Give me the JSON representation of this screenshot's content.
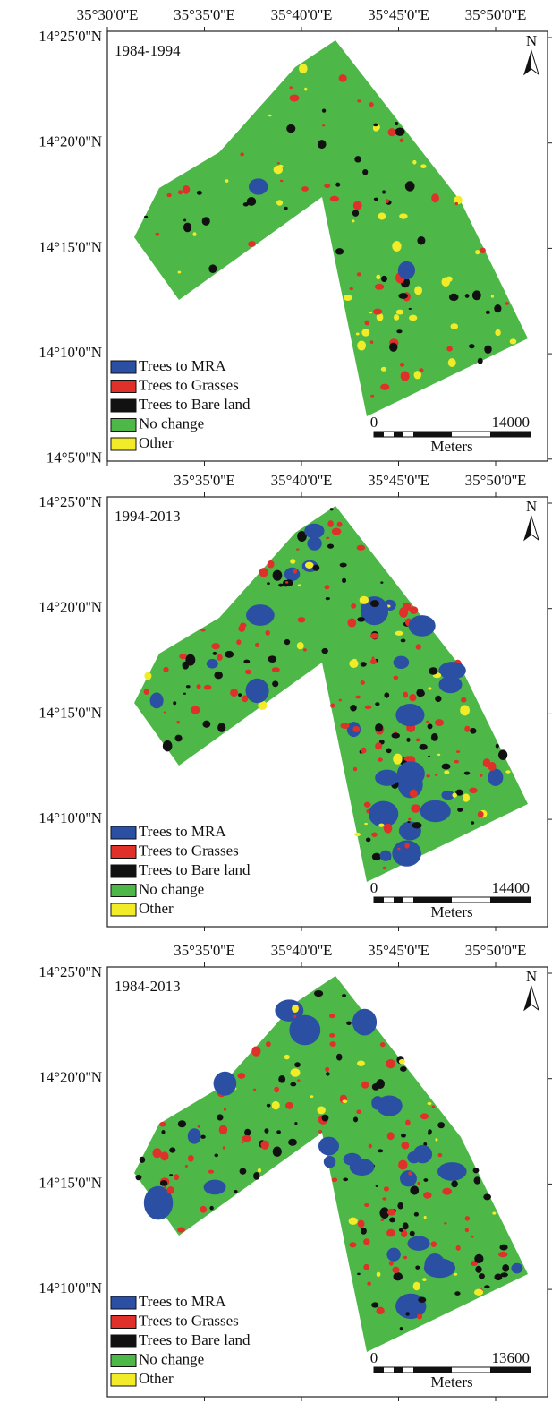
{
  "panels": [
    {
      "period": "1984-1994",
      "lon_labels": [
        "35°30'0''E",
        "35°35'0''E",
        "35°40'0''E",
        "35°45'0''E",
        "35°50'0''E"
      ],
      "lat_labels": [
        "14°25'0''N",
        "14°20'0''N",
        "14°15'0''N",
        "14°10'0''N",
        "14°5'0''N"
      ],
      "north": "N",
      "scale": {
        "start": "0",
        "end": "14000",
        "unit": "Meters"
      }
    },
    {
      "period": "1994-2013",
      "lon_labels": [
        "35°35'0''E",
        "35°40'0''E",
        "35°45'0''E",
        "35°50'0''E"
      ],
      "lat_labels": [
        "14°25'0''N",
        "14°20'0''N",
        "14°15'0''N",
        "14°10'0''N"
      ],
      "north": "N",
      "scale": {
        "start": "0",
        "end": "14400",
        "unit": "Meters"
      }
    },
    {
      "period": "1984-2013",
      "lon_labels": [
        "35°35'0''E",
        "35°40'0''E",
        "35°45'0''E",
        "35°50'0''E"
      ],
      "lat_labels": [
        "14°25'0''N",
        "14°20'0''N",
        "14°15'0''N",
        "14°10'0''N"
      ],
      "north": "N",
      "scale": {
        "start": "0",
        "end": "13600",
        "unit": "Meters"
      }
    }
  ],
  "legend": [
    {
      "label": "Trees to MRA",
      "color": "#2a4fa3"
    },
    {
      "label": "Trees to Grasses",
      "color": "#e0302a"
    },
    {
      "label": "Trees to Bare land",
      "color": "#111111"
    },
    {
      "label": "No change",
      "color": "#4db848"
    },
    {
      "label": "Other",
      "color": "#f2ec28"
    }
  ]
}
